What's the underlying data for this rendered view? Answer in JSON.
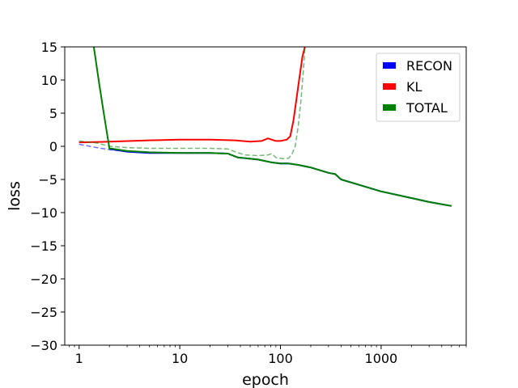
{
  "chart_data": {
    "type": "line",
    "xscale": "log",
    "xlabel": "epoch",
    "ylabel": "loss",
    "xlim": [
      0.72,
      7000
    ],
    "ylim": [
      -30,
      15
    ],
    "xticks": [
      {
        "value": 1,
        "label": "1"
      },
      {
        "value": 10,
        "label": "10"
      },
      {
        "value": 100,
        "label": "100"
      },
      {
        "value": 1000,
        "label": "1000"
      }
    ],
    "yticks": [
      {
        "value": 15,
        "label": "15"
      },
      {
        "value": 10,
        "label": "10"
      },
      {
        "value": 5,
        "label": "5"
      },
      {
        "value": 0,
        "label": "0"
      },
      {
        "value": -5,
        "label": "−5"
      },
      {
        "value": -10,
        "label": "−10"
      },
      {
        "value": -15,
        "label": "−15"
      },
      {
        "value": -20,
        "label": "−20"
      },
      {
        "value": -25,
        "label": "−25"
      },
      {
        "value": -30,
        "label": "−30"
      }
    ],
    "grid": false,
    "legend_position": "top-right",
    "legend": [
      {
        "label": "RECON",
        "color": "#0000ff"
      },
      {
        "label": "KL",
        "color": "#ff0000"
      },
      {
        "label": "TOTAL",
        "color": "#008000"
      }
    ],
    "series": [
      {
        "name": "RECON",
        "style": "solid",
        "color": "#0000ff",
        "x": [
          2,
          3,
          5,
          10,
          20,
          30,
          38,
          45,
          60,
          80,
          100,
          120,
          150,
          200,
          300,
          350,
          400,
          600,
          1000,
          2000,
          3000,
          5000
        ],
        "y": [
          -0.4,
          -0.8,
          -1.0,
          -1.0,
          -1.0,
          -1.1,
          -1.7,
          -1.8,
          -2.0,
          -2.4,
          -2.6,
          -2.6,
          -2.8,
          -3.2,
          -4.0,
          -4.2,
          -5.0,
          -5.8,
          -6.8,
          -7.8,
          -8.4,
          -9.0
        ]
      },
      {
        "name": "RECON (validation)",
        "style": "dashed",
        "color": "#0000ff",
        "x": [
          1,
          1.5,
          2,
          3,
          5
        ],
        "y": [
          0.3,
          -0.2,
          -0.5,
          -0.8,
          -1.0
        ]
      },
      {
        "name": "KL",
        "style": "solid",
        "color": "#ff0000",
        "x": [
          1,
          2,
          5,
          10,
          20,
          35,
          50,
          65,
          75,
          82,
          90,
          100,
          115,
          125,
          135,
          150,
          165,
          175
        ],
        "y": [
          0.6,
          0.7,
          0.9,
          1.0,
          1.0,
          0.9,
          0.7,
          0.8,
          1.2,
          1.0,
          0.8,
          0.8,
          1.0,
          1.5,
          4.0,
          9.0,
          13.5,
          15.0
        ]
      },
      {
        "name": "TOTAL",
        "style": "solid",
        "color": "#008000",
        "x": [
          1.4,
          1.6,
          1.8,
          2,
          3,
          5,
          10,
          20,
          30,
          38,
          45,
          60,
          80,
          100,
          120,
          150,
          200,
          300,
          350,
          400,
          600,
          1000,
          2000,
          3000,
          5000
        ],
        "y": [
          15,
          9,
          4,
          -0.3,
          -0.7,
          -0.9,
          -1.0,
          -1.0,
          -1.1,
          -1.7,
          -1.8,
          -2.0,
          -2.4,
          -2.6,
          -2.6,
          -2.8,
          -3.2,
          -4.0,
          -4.2,
          -5.0,
          -5.8,
          -6.8,
          -7.8,
          -8.4,
          -9.0
        ]
      },
      {
        "name": "TOTAL (validation)",
        "style": "dashed",
        "color": "#008000",
        "x": [
          1,
          1.5,
          2,
          3,
          5,
          10,
          20,
          30,
          38,
          45,
          60,
          75,
          82,
          90,
          100,
          110,
          120,
          130,
          140,
          150,
          160,
          170,
          175
        ],
        "y": [
          0.8,
          0.5,
          0.0,
          -0.2,
          -0.3,
          -0.3,
          -0.3,
          -0.4,
          -1.0,
          -1.3,
          -1.4,
          -1.3,
          -1.1,
          -1.7,
          -1.8,
          -1.9,
          -1.8,
          -1.2,
          0.0,
          3.0,
          7.0,
          12.0,
          15.0
        ]
      }
    ]
  }
}
